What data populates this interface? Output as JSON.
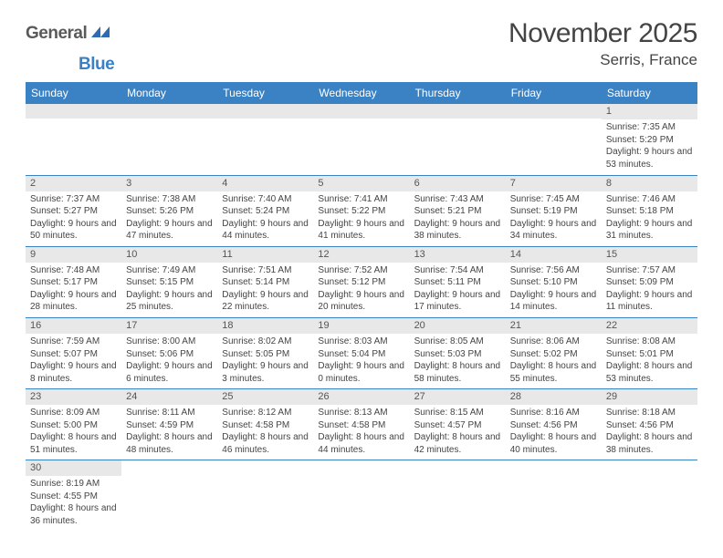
{
  "logo": {
    "general": "General",
    "blue": "Blue"
  },
  "title": "November 2025",
  "location": "Serris, France",
  "colors": {
    "header_bg": "#3b82c4",
    "header_text": "#ffffff",
    "daynum_bg": "#e8e8e8",
    "rule": "#3b82c4",
    "logo_gray": "#5a5a5a",
    "logo_blue": "#3b7fc4"
  },
  "weekdays": [
    "Sunday",
    "Monday",
    "Tuesday",
    "Wednesday",
    "Thursday",
    "Friday",
    "Saturday"
  ],
  "first_weekday_index": 6,
  "days": [
    {
      "n": 1,
      "sunrise": "7:35 AM",
      "sunset": "5:29 PM",
      "daylight": "9 hours and 53 minutes."
    },
    {
      "n": 2,
      "sunrise": "7:37 AM",
      "sunset": "5:27 PM",
      "daylight": "9 hours and 50 minutes."
    },
    {
      "n": 3,
      "sunrise": "7:38 AM",
      "sunset": "5:26 PM",
      "daylight": "9 hours and 47 minutes."
    },
    {
      "n": 4,
      "sunrise": "7:40 AM",
      "sunset": "5:24 PM",
      "daylight": "9 hours and 44 minutes."
    },
    {
      "n": 5,
      "sunrise": "7:41 AM",
      "sunset": "5:22 PM",
      "daylight": "9 hours and 41 minutes."
    },
    {
      "n": 6,
      "sunrise": "7:43 AM",
      "sunset": "5:21 PM",
      "daylight": "9 hours and 38 minutes."
    },
    {
      "n": 7,
      "sunrise": "7:45 AM",
      "sunset": "5:19 PM",
      "daylight": "9 hours and 34 minutes."
    },
    {
      "n": 8,
      "sunrise": "7:46 AM",
      "sunset": "5:18 PM",
      "daylight": "9 hours and 31 minutes."
    },
    {
      "n": 9,
      "sunrise": "7:48 AM",
      "sunset": "5:17 PM",
      "daylight": "9 hours and 28 minutes."
    },
    {
      "n": 10,
      "sunrise": "7:49 AM",
      "sunset": "5:15 PM",
      "daylight": "9 hours and 25 minutes."
    },
    {
      "n": 11,
      "sunrise": "7:51 AM",
      "sunset": "5:14 PM",
      "daylight": "9 hours and 22 minutes."
    },
    {
      "n": 12,
      "sunrise": "7:52 AM",
      "sunset": "5:12 PM",
      "daylight": "9 hours and 20 minutes."
    },
    {
      "n": 13,
      "sunrise": "7:54 AM",
      "sunset": "5:11 PM",
      "daylight": "9 hours and 17 minutes."
    },
    {
      "n": 14,
      "sunrise": "7:56 AM",
      "sunset": "5:10 PM",
      "daylight": "9 hours and 14 minutes."
    },
    {
      "n": 15,
      "sunrise": "7:57 AM",
      "sunset": "5:09 PM",
      "daylight": "9 hours and 11 minutes."
    },
    {
      "n": 16,
      "sunrise": "7:59 AM",
      "sunset": "5:07 PM",
      "daylight": "9 hours and 8 minutes."
    },
    {
      "n": 17,
      "sunrise": "8:00 AM",
      "sunset": "5:06 PM",
      "daylight": "9 hours and 6 minutes."
    },
    {
      "n": 18,
      "sunrise": "8:02 AM",
      "sunset": "5:05 PM",
      "daylight": "9 hours and 3 minutes."
    },
    {
      "n": 19,
      "sunrise": "8:03 AM",
      "sunset": "5:04 PM",
      "daylight": "9 hours and 0 minutes."
    },
    {
      "n": 20,
      "sunrise": "8:05 AM",
      "sunset": "5:03 PM",
      "daylight": "8 hours and 58 minutes."
    },
    {
      "n": 21,
      "sunrise": "8:06 AM",
      "sunset": "5:02 PM",
      "daylight": "8 hours and 55 minutes."
    },
    {
      "n": 22,
      "sunrise": "8:08 AM",
      "sunset": "5:01 PM",
      "daylight": "8 hours and 53 minutes."
    },
    {
      "n": 23,
      "sunrise": "8:09 AM",
      "sunset": "5:00 PM",
      "daylight": "8 hours and 51 minutes."
    },
    {
      "n": 24,
      "sunrise": "8:11 AM",
      "sunset": "4:59 PM",
      "daylight": "8 hours and 48 minutes."
    },
    {
      "n": 25,
      "sunrise": "8:12 AM",
      "sunset": "4:58 PM",
      "daylight": "8 hours and 46 minutes."
    },
    {
      "n": 26,
      "sunrise": "8:13 AM",
      "sunset": "4:58 PM",
      "daylight": "8 hours and 44 minutes."
    },
    {
      "n": 27,
      "sunrise": "8:15 AM",
      "sunset": "4:57 PM",
      "daylight": "8 hours and 42 minutes."
    },
    {
      "n": 28,
      "sunrise": "8:16 AM",
      "sunset": "4:56 PM",
      "daylight": "8 hours and 40 minutes."
    },
    {
      "n": 29,
      "sunrise": "8:18 AM",
      "sunset": "4:56 PM",
      "daylight": "8 hours and 38 minutes."
    },
    {
      "n": 30,
      "sunrise": "8:19 AM",
      "sunset": "4:55 PM",
      "daylight": "8 hours and 36 minutes."
    }
  ],
  "labels": {
    "sunrise": "Sunrise:",
    "sunset": "Sunset:",
    "daylight": "Daylight:"
  }
}
